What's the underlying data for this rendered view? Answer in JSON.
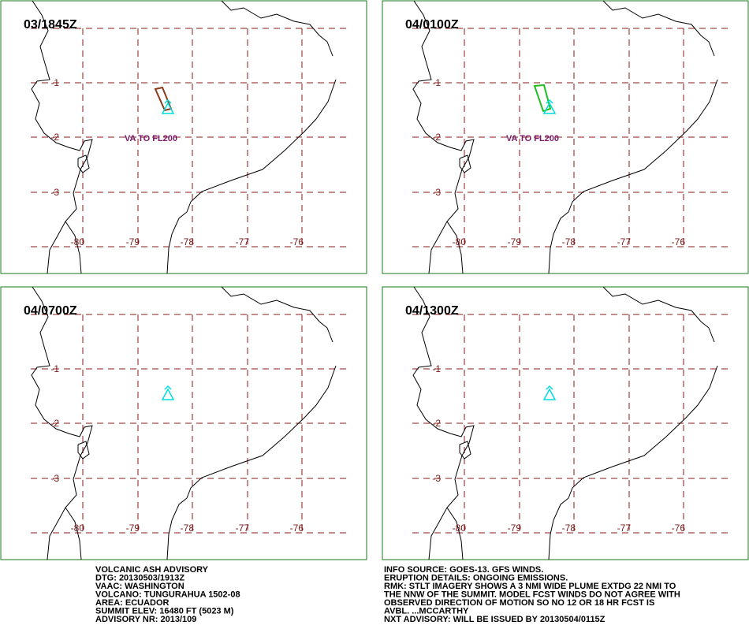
{
  "panels": [
    {
      "time": "03/1845Z",
      "label": "VA TO FL200"
    },
    {
      "time": "04/0100Z",
      "label": "VA TO FL200"
    },
    {
      "time": "04/0700Z"
    },
    {
      "time": "04/1300Z"
    }
  ],
  "grid": {
    "lat_labels": [
      "-1",
      "-2",
      "-3"
    ],
    "lon_labels": [
      "-80",
      "-79",
      "-78",
      "-77",
      "-76"
    ]
  },
  "advisory_left": [
    "VOLCANIC ASH ADVISORY",
    "DTG: 20130503/1913Z",
    "VAAC: WASHINGTON",
    "VOLCANO: TUNGURAHUA 1502-08",
    "AREA: ECUADOR",
    "SUMMIT ELEV: 16480 FT (5023 M)",
    "ADVISORY NR: 2013/109"
  ],
  "advisory_right": [
    "INFO SOURCE: GOES-13. GFS WINDS.",
    "ERUPTION DETAILS: ONGOING EMISSIONS.",
    "RMK: STLT IMAGERY SHOWS A 3 NMI WIDE PLUME EXTDG 22 NMI TO",
    "THE NNW OF THE SUMMIT. MODEL FCST WINDS DO NOT AGREE WITH",
    "OBSERVED DIRECTION OF MOTION SO NO 12 OR 18 HR FCST IS",
    "AVBL. ...MCCARTHY",
    "NXT ADVISORY: WILL BE ISSUED BY 20130504/0115Z"
  ]
}
